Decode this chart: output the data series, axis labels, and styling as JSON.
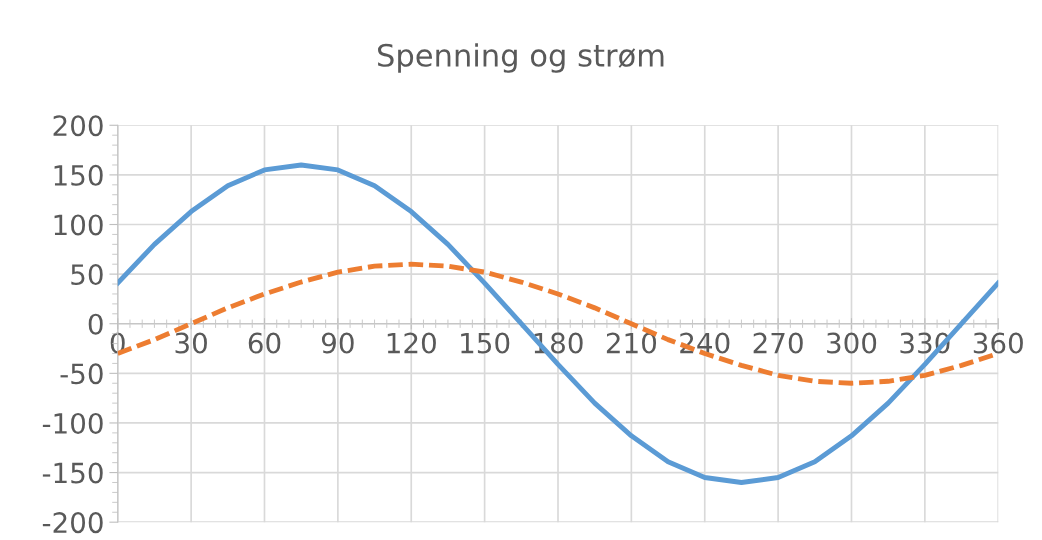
{
  "chart_data": {
    "type": "line",
    "title": "Spenning og strøm",
    "x": [
      0,
      15,
      30,
      45,
      60,
      75,
      90,
      105,
      120,
      135,
      150,
      165,
      180,
      195,
      210,
      225,
      240,
      255,
      270,
      285,
      300,
      315,
      330,
      345,
      360
    ],
    "series": [
      {
        "color": "#5b9bd5",
        "line_style": "solid",
        "values": [
          41,
          80,
          113,
          139,
          155,
          160,
          155,
          139,
          113,
          80,
          41,
          0,
          -41,
          -80,
          -113,
          -139,
          -155,
          -160,
          -155,
          -139,
          -113,
          -80,
          -41,
          0,
          41
        ]
      },
      {
        "color": "#ed7d31",
        "line_style": "dashed",
        "values": [
          -30,
          -16,
          0,
          16,
          30,
          42,
          52,
          58,
          60,
          58,
          52,
          42,
          30,
          16,
          0,
          -16,
          -30,
          -42,
          -52,
          -58,
          -60,
          -58,
          -52,
          -42,
          -30
        ]
      }
    ],
    "xlim": [
      0,
      360
    ],
    "xticks": [
      0,
      30,
      60,
      90,
      120,
      150,
      180,
      210,
      240,
      270,
      300,
      330,
      360
    ],
    "ylim": [
      -200,
      200
    ],
    "yticks": [
      -200,
      -150,
      -100,
      -50,
      0,
      50,
      100,
      150,
      200
    ],
    "grid": true,
    "marker": "none"
  }
}
